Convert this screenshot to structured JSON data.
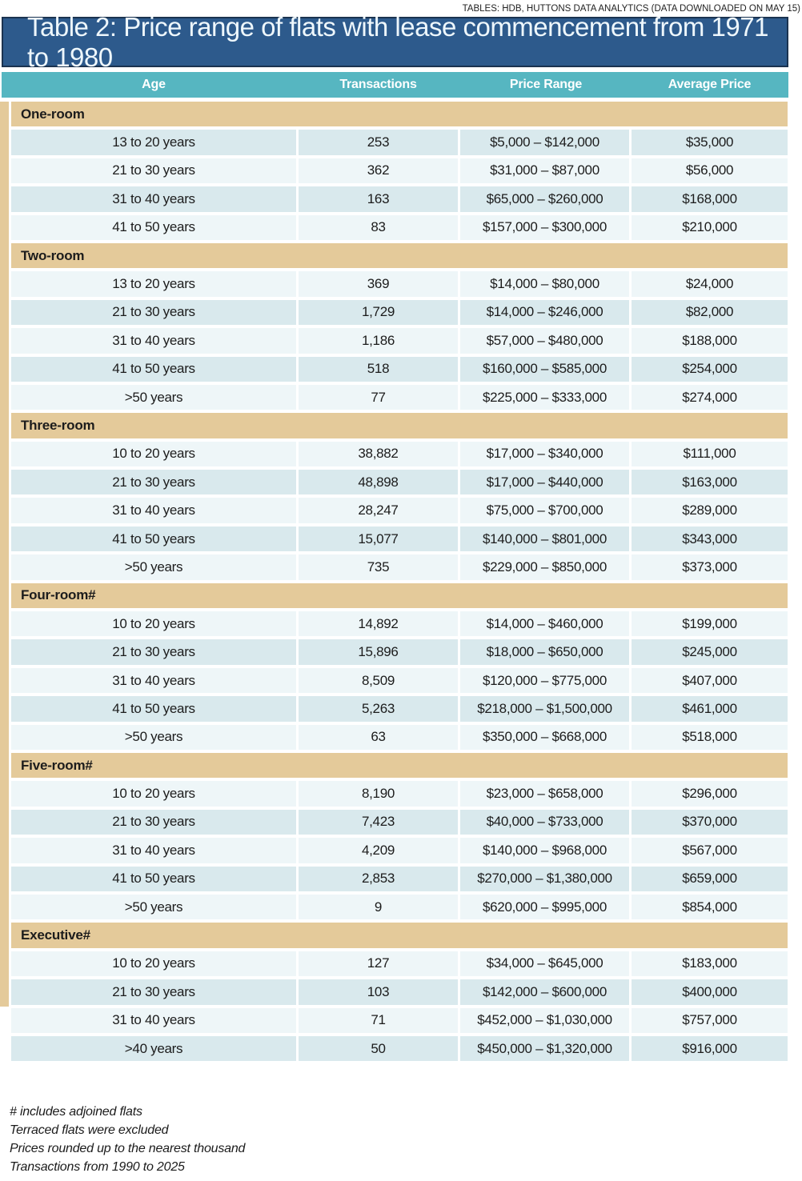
{
  "source_note": "TABLES: HDB, HUTTONS DATA ANALYTICS (DATA DOWNLOADED ON MAY 15)",
  "title": "Table 2: Price range of flats with lease commencement from 1971 to 1980",
  "columns": [
    "Age",
    "Transactions",
    "Price Range",
    "Average Price"
  ],
  "sections": [
    {
      "name": "One-room",
      "rows": [
        [
          "13 to 20 years",
          "253",
          "$5,000 – $142,000",
          "$35,000"
        ],
        [
          "21 to 30 years",
          "362",
          "$31,000 – $87,000",
          "$56,000"
        ],
        [
          "31 to 40 years",
          "163",
          "$65,000 – $260,000",
          "$168,000"
        ],
        [
          "41 to 50 years",
          "83",
          "$157,000 – $300,000",
          "$210,000"
        ]
      ]
    },
    {
      "name": "Two-room",
      "rows": [
        [
          "13 to 20 years",
          "369",
          "$14,000 – $80,000",
          "$24,000"
        ],
        [
          "21 to 30 years",
          "1,729",
          "$14,000 – $246,000",
          "$82,000"
        ],
        [
          "31 to 40 years",
          "1,186",
          "$57,000 – $480,000",
          "$188,000"
        ],
        [
          "41 to 50 years",
          "518",
          "$160,000 – $585,000",
          "$254,000"
        ],
        [
          ">50 years",
          "77",
          "$225,000 – $333,000",
          "$274,000"
        ]
      ]
    },
    {
      "name": "Three-room",
      "rows": [
        [
          "10 to 20 years",
          "38,882",
          "$17,000 – $340,000",
          "$111,000"
        ],
        [
          "21 to 30 years",
          "48,898",
          "$17,000 – $440,000",
          "$163,000"
        ],
        [
          "31 to 40 years",
          "28,247",
          "$75,000 – $700,000",
          "$289,000"
        ],
        [
          "41 to 50 years",
          "15,077",
          "$140,000 – $801,000",
          "$343,000"
        ],
        [
          ">50 years",
          "735",
          "$229,000 – $850,000",
          "$373,000"
        ]
      ]
    },
    {
      "name": "Four-room#",
      "rows": [
        [
          "10 to 20 years",
          "14,892",
          "$14,000 – $460,000",
          "$199,000"
        ],
        [
          "21 to 30 years",
          "15,896",
          "$18,000 – $650,000",
          "$245,000"
        ],
        [
          "31 to 40 years",
          "8,509",
          "$120,000 – $775,000",
          "$407,000"
        ],
        [
          "41 to 50 years",
          "5,263",
          "$218,000 – $1,500,000",
          "$461,000"
        ],
        [
          ">50 years",
          "63",
          "$350,000 – $668,000",
          "$518,000"
        ]
      ]
    },
    {
      "name": "Five-room#",
      "rows": [
        [
          "10 to 20 years",
          "8,190",
          "$23,000 – $658,000",
          "$296,000"
        ],
        [
          "21 to 30 years",
          "7,423",
          "$40,000 – $733,000",
          "$370,000"
        ],
        [
          "31 to 40 years",
          "4,209",
          "$140,000 – $968,000",
          "$567,000"
        ],
        [
          "41 to 50 years",
          "2,853",
          "$270,000 – $1,380,000",
          "$659,000"
        ],
        [
          ">50 years",
          "9",
          "$620,000 – $995,000",
          "$854,000"
        ]
      ]
    },
    {
      "name": "Executive#",
      "rows": [
        [
          "10 to 20 years",
          "127",
          "$34,000 – $645,000",
          "$183,000"
        ],
        [
          "21 to 30 years",
          "103",
          "$142,000 – $600,000",
          "$400,000"
        ],
        [
          "31 to 40 years",
          "71",
          "$452,000 – $1,030,000",
          "$757,000"
        ],
        [
          ">40 years",
          "50",
          "$450,000 – $1,320,000",
          "$916,000"
        ]
      ]
    }
  ],
  "footnotes": [
    "# includes adjoined flats",
    "Terraced flats were excluded",
    "Prices rounded up to the nearest thousand",
    "Transactions from 1990 to 2025"
  ],
  "colors": {
    "title_bg": "#2d5a8c",
    "title_border": "#1b3350",
    "header_teal": "#56b6c1",
    "section_tan": "#e4ca9a",
    "row_dark": "#d9e9ed",
    "row_light": "#eef6f8",
    "text": "#1c1c1c"
  }
}
